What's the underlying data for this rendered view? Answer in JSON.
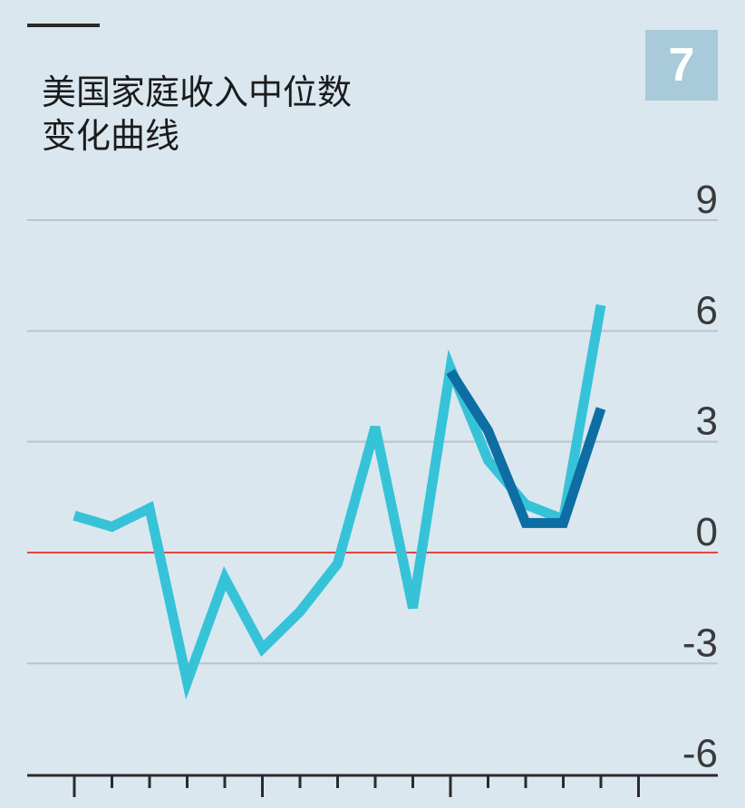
{
  "badge": "7",
  "colors": {
    "background": "#dae7ef",
    "gridline": "#b9c4cc",
    "zero_line": "#e0463f",
    "series_light": "#36c3d8",
    "series_dark": "#0e6ea3",
    "badge_bg": "#a9cad9"
  },
  "chart_data": {
    "type": "line",
    "title": "美国家庭收入中位数变化曲线",
    "title_lines": [
      "美国家庭收入中位数",
      "变化曲线"
    ],
    "xlabel": "",
    "ylabel": "",
    "ylim": [
      -6,
      9
    ],
    "yticks": [
      9,
      6,
      3,
      0,
      -3,
      -6
    ],
    "ytick_labels": [
      "9",
      "6",
      "3",
      "0",
      "-3",
      "-6"
    ],
    "y_axis_side": "right",
    "grid": true,
    "zero_line": true,
    "x": [
      1,
      2,
      3,
      4,
      5,
      6,
      7,
      8,
      9,
      10,
      11,
      12,
      13,
      14,
      15,
      16
    ],
    "series": [
      {
        "color": "light",
        "values": [
          1.0,
          0.7,
          1.2,
          -3.5,
          -0.7,
          -2.6,
          -1.6,
          -0.3,
          3.4,
          -1.5,
          5.0,
          2.5,
          1.3,
          0.9,
          6.7,
          null
        ]
      },
      {
        "color": "dark",
        "values": [
          null,
          null,
          null,
          null,
          null,
          null,
          null,
          null,
          null,
          null,
          4.9,
          3.3,
          0.8,
          0.8,
          3.9,
          null
        ]
      }
    ]
  }
}
